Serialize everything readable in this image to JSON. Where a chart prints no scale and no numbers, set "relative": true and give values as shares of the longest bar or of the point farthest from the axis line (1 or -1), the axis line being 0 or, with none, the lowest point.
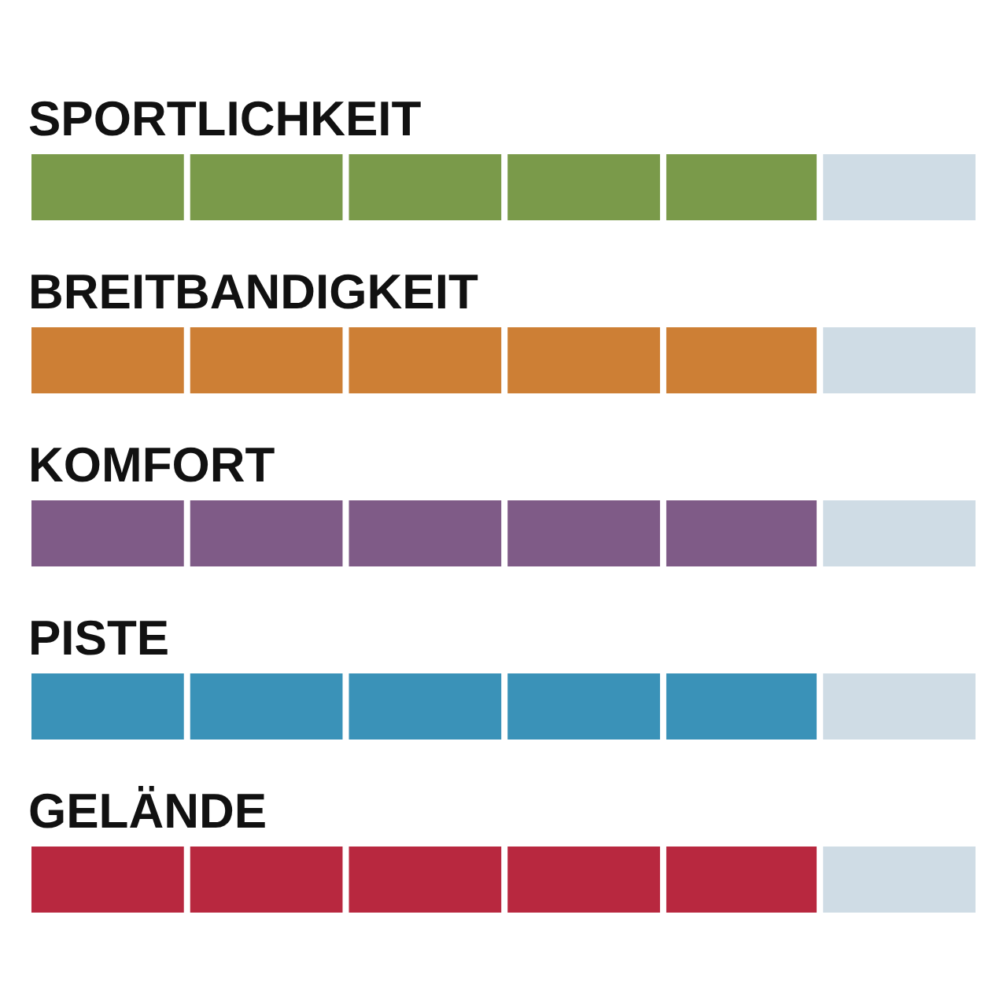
{
  "chart_data": {
    "type": "bar",
    "orientation": "horizontal",
    "stacked": true,
    "relative": true,
    "categories": [
      "SPORTLICHKEIT",
      "BREITBANDIGKEIT",
      "KOMFORT",
      "PISTE",
      "GELÄNDE"
    ],
    "series": [
      {
        "colors": [
          "#7a9a4a",
          "#cd7f35",
          "#7f5b87",
          "#3a92b8",
          "#b8283f"
        ],
        "values": [
          0.833,
          0.833,
          0.833,
          0.833,
          0.833
        ]
      },
      {
        "color": "#cfdce5",
        "values": [
          0.167,
          0.167,
          0.167,
          0.167,
          0.167
        ]
      }
    ]
  }
}
